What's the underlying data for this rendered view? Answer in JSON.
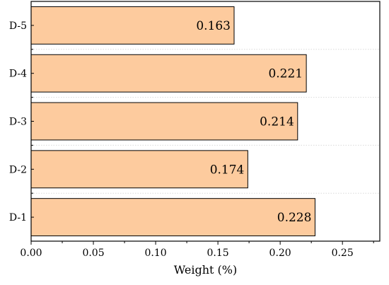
{
  "chart_data": {
    "type": "bar",
    "orientation": "horizontal",
    "categories": [
      "D-1",
      "D-2",
      "D-3",
      "D-4",
      "D-5"
    ],
    "values": [
      0.228,
      0.174,
      0.214,
      0.221,
      0.163
    ],
    "data_labels": [
      "0.228",
      "0.174",
      "0.214",
      "0.221",
      "0.163"
    ],
    "xlabel": "Weight (%)",
    "ylabel": "",
    "xlim": [
      0,
      0.28
    ],
    "xticks": [
      0.0,
      0.05,
      0.1,
      0.15,
      0.2,
      0.25
    ],
    "xtick_labels": [
      "0.00",
      "0.05",
      "0.10",
      "0.15",
      "0.20",
      "0.25"
    ],
    "grid": "horizontal dotted",
    "legend": "none",
    "colors": {
      "bar_fill": "#FDCB9E",
      "bar_stroke": "#000000",
      "grid": "#d9d9d9"
    }
  }
}
